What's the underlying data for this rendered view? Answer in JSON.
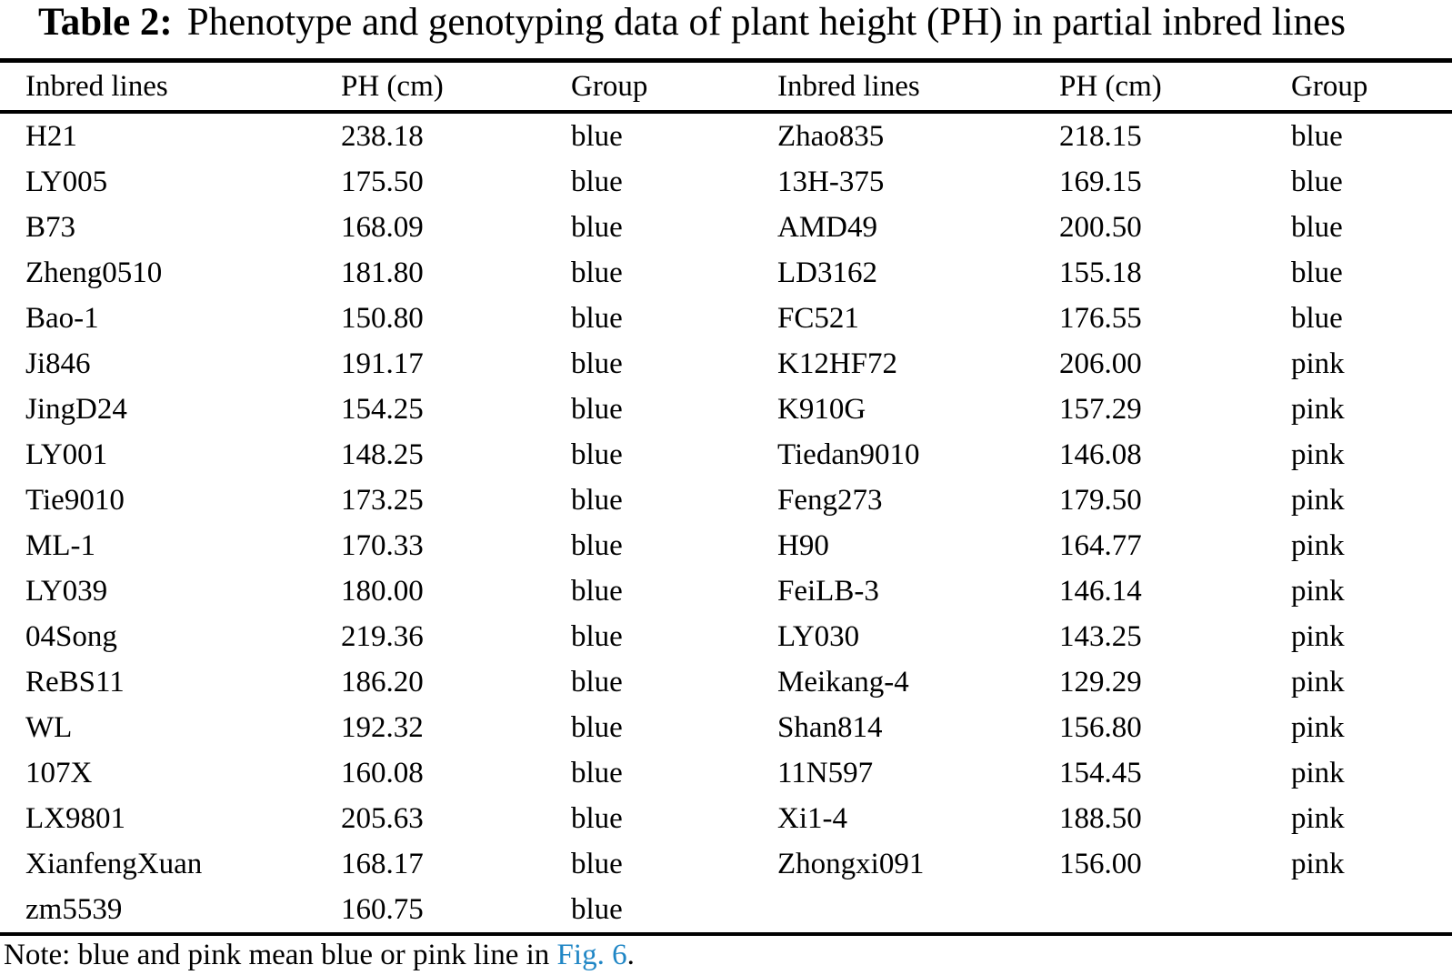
{
  "title": {
    "label": "Table 2:",
    "text": "Phenotype and genotyping data of plant height (PH) in partial inbred lines"
  },
  "table": {
    "headers": [
      "Inbred lines",
      "PH (cm)",
      "Group",
      "Inbred lines",
      "PH (cm)",
      "Group"
    ],
    "left_rows": [
      {
        "line": "H21",
        "ph": "238.18",
        "group": "blue"
      },
      {
        "line": "LY005",
        "ph": "175.50",
        "group": "blue"
      },
      {
        "line": "B73",
        "ph": "168.09",
        "group": "blue"
      },
      {
        "line": "Zheng0510",
        "ph": "181.80",
        "group": "blue"
      },
      {
        "line": "Bao-1",
        "ph": "150.80",
        "group": "blue"
      },
      {
        "line": "Ji846",
        "ph": "191.17",
        "group": "blue"
      },
      {
        "line": "JingD24",
        "ph": "154.25",
        "group": "blue"
      },
      {
        "line": "LY001",
        "ph": "148.25",
        "group": "blue"
      },
      {
        "line": "Tie9010",
        "ph": "173.25",
        "group": "blue"
      },
      {
        "line": "ML-1",
        "ph": "170.33",
        "group": "blue"
      },
      {
        "line": "LY039",
        "ph": "180.00",
        "group": "blue"
      },
      {
        "line": "04Song",
        "ph": "219.36",
        "group": "blue"
      },
      {
        "line": "ReBS11",
        "ph": "186.20",
        "group": "blue"
      },
      {
        "line": "WL",
        "ph": "192.32",
        "group": "blue"
      },
      {
        "line": "107X",
        "ph": "160.08",
        "group": "blue"
      },
      {
        "line": "LX9801",
        "ph": "205.63",
        "group": "blue"
      },
      {
        "line": "XianfengXuan",
        "ph": "168.17",
        "group": "blue"
      },
      {
        "line": "zm5539",
        "ph": "160.75",
        "group": "blue"
      }
    ],
    "right_rows": [
      {
        "line": "Zhao835",
        "ph": "218.15",
        "group": "blue"
      },
      {
        "line": "13H-375",
        "ph": "169.15",
        "group": "blue"
      },
      {
        "line": "AMD49",
        "ph": "200.50",
        "group": "blue"
      },
      {
        "line": "LD3162",
        "ph": "155.18",
        "group": "blue"
      },
      {
        "line": "FC521",
        "ph": "176.55",
        "group": "blue"
      },
      {
        "line": "K12HF72",
        "ph": "206.00",
        "group": "pink"
      },
      {
        "line": "K910G",
        "ph": "157.29",
        "group": "pink"
      },
      {
        "line": "Tiedan9010",
        "ph": "146.08",
        "group": "pink"
      },
      {
        "line": "Feng273",
        "ph": "179.50",
        "group": "pink"
      },
      {
        "line": "H90",
        "ph": "164.77",
        "group": "pink"
      },
      {
        "line": "FeiLB-3",
        "ph": "146.14",
        "group": "pink"
      },
      {
        "line": "LY030",
        "ph": "143.25",
        "group": "pink"
      },
      {
        "line": "Meikang-4",
        "ph": "129.29",
        "group": "pink"
      },
      {
        "line": "Shan814",
        "ph": "156.80",
        "group": "pink"
      },
      {
        "line": "11N597",
        "ph": "154.45",
        "group": "pink"
      },
      {
        "line": "Xi1-4",
        "ph": "188.50",
        "group": "pink"
      },
      {
        "line": "Zhongxi091",
        "ph": "156.00",
        "group": "pink"
      }
    ]
  },
  "note": {
    "prefix": "Note: blue and pink mean blue or pink line in ",
    "link": "Fig. 6",
    "suffix": "."
  },
  "colors": {
    "text": "#000000",
    "background": "#ffffff",
    "link": "#1f86c5"
  }
}
